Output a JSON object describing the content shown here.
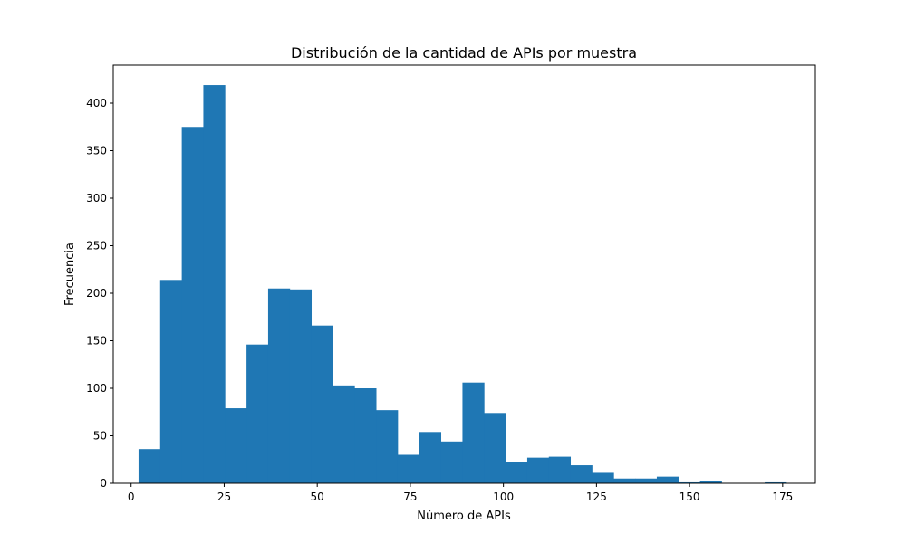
{
  "chart_data": {
    "type": "histogram",
    "title": "Distribución de la cantidad de APIs por muestra",
    "xlabel": "Número de APIs",
    "ylabel": "Frecuencia",
    "xlim": [
      -4.8,
      183.8
    ],
    "ylim": [
      0,
      440
    ],
    "xticks": [
      0,
      25,
      50,
      75,
      100,
      125,
      150,
      175
    ],
    "yticks": [
      0,
      50,
      100,
      150,
      200,
      250,
      300,
      350,
      400
    ],
    "grid": false,
    "bar_color": "#1f77b4",
    "bin_start": 2,
    "bin_width": 5.8,
    "values": [
      36,
      214,
      375,
      419,
      79,
      146,
      205,
      204,
      166,
      103,
      100,
      77,
      30,
      54,
      44,
      106,
      74,
      22,
      27,
      28,
      19,
      11,
      5,
      5,
      7,
      1,
      2,
      0,
      0,
      1
    ]
  }
}
